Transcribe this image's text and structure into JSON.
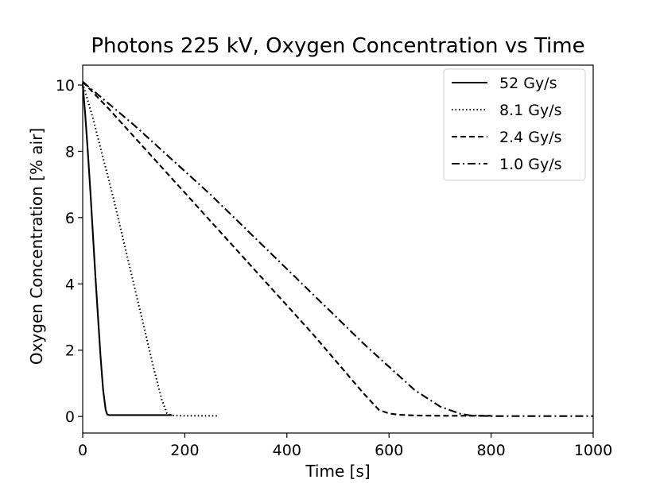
{
  "chart_data": {
    "type": "line",
    "title": "Photons 225 kV, Oxygen Concentration vs Time",
    "xlabel": "Time [s]",
    "ylabel": "Oxygen Concentration [% air]",
    "xlim": [
      0,
      1000
    ],
    "ylim": [
      -0.5,
      10.6
    ],
    "xticks": [
      0,
      200,
      400,
      600,
      800,
      1000
    ],
    "yticks": [
      0,
      2,
      4,
      6,
      8,
      10
    ],
    "grid": false,
    "legend_position": "top-right",
    "series": [
      {
        "name": "52 Gy/s",
        "dash": "solid",
        "x": [
          0,
          5,
          10,
          15,
          20,
          25,
          30,
          35,
          40,
          45,
          48,
          52,
          60,
          100,
          150,
          175
        ],
        "y": [
          10.05,
          9.1,
          8.0,
          6.8,
          5.5,
          4.2,
          3.0,
          1.8,
          0.8,
          0.2,
          0.06,
          0.04,
          0.04,
          0.04,
          0.04,
          0.04
        ]
      },
      {
        "name": "8.1 Gy/s",
        "dash": "dotted",
        "x": [
          0,
          20,
          40,
          60,
          80,
          100,
          120,
          140,
          155,
          165,
          175,
          200,
          230,
          265
        ],
        "y": [
          10.05,
          9.0,
          7.8,
          6.6,
          5.3,
          4.0,
          2.7,
          1.4,
          0.5,
          0.1,
          0.03,
          0.02,
          0.02,
          0.02
        ]
      },
      {
        "name": "2.4 Gy/s",
        "dash": "dashed",
        "x": [
          0,
          50,
          100,
          150,
          200,
          250,
          300,
          350,
          400,
          450,
          500,
          550,
          580,
          600,
          620,
          650,
          700,
          750,
          800
        ],
        "y": [
          10.1,
          9.3,
          8.45,
          7.6,
          6.75,
          5.9,
          5.05,
          4.2,
          3.35,
          2.5,
          1.6,
          0.7,
          0.2,
          0.09,
          0.05,
          0.03,
          0.02,
          0.02,
          0.02
        ]
      },
      {
        "name": "1.0 Gy/s",
        "dash": "dashdot",
        "x": [
          0,
          50,
          100,
          150,
          200,
          250,
          300,
          350,
          400,
          450,
          500,
          550,
          600,
          650,
          700,
          740,
          760,
          780,
          800,
          850,
          900,
          950,
          1000
        ],
        "y": [
          10.1,
          9.45,
          8.8,
          8.1,
          7.4,
          6.7,
          5.95,
          5.2,
          4.45,
          3.7,
          2.95,
          2.2,
          1.5,
          0.8,
          0.3,
          0.08,
          0.03,
          0.02,
          0.01,
          0.01,
          0.01,
          0.01,
          0.01
        ]
      }
    ]
  }
}
